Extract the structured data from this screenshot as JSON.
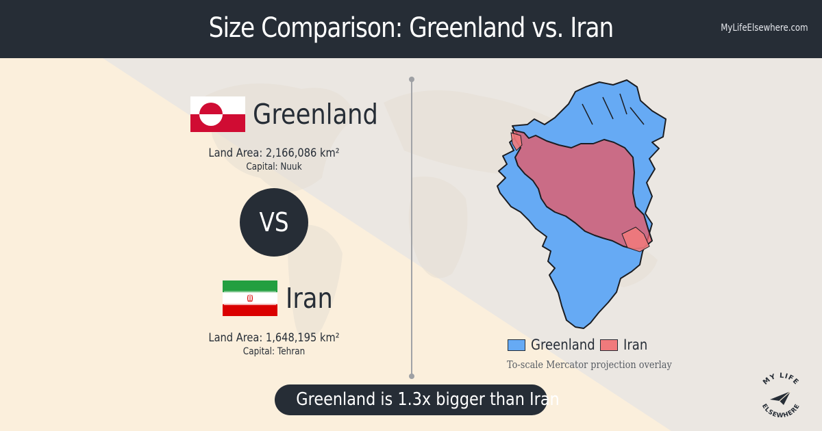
{
  "header": {
    "title": "Size Comparison: Greenland vs. Iran",
    "site": "MyLifeElsewhere.com"
  },
  "country_a": {
    "name": "Greenland",
    "land_area": "Land Area: 2,166,086 km²",
    "capital": "Capital: Nuuk",
    "flag_icon": "greenland-flag-icon"
  },
  "country_b": {
    "name": "Iran",
    "land_area": "Land Area: 1,648,195 km²",
    "capital": "Capital: Tehran",
    "flag_icon": "iran-flag-icon"
  },
  "vs_label": "VS",
  "legend": {
    "items": [
      {
        "label": "Greenland",
        "color": "#66aaf4"
      },
      {
        "label": "Iran",
        "color": "#f07a7c"
      }
    ],
    "note": "To-scale Mercator projection overlay"
  },
  "verdict": "Greenland is 1.3x bigger than Iran",
  "logo": {
    "text": "MY LIFE ELSEWHERE",
    "icon": "paper-plane-icon"
  },
  "colors": {
    "header_bg": "#262d36",
    "greenland_fill": "#66aaf4",
    "iran_fill": "#f07a7c",
    "background": "#fbefdc"
  }
}
